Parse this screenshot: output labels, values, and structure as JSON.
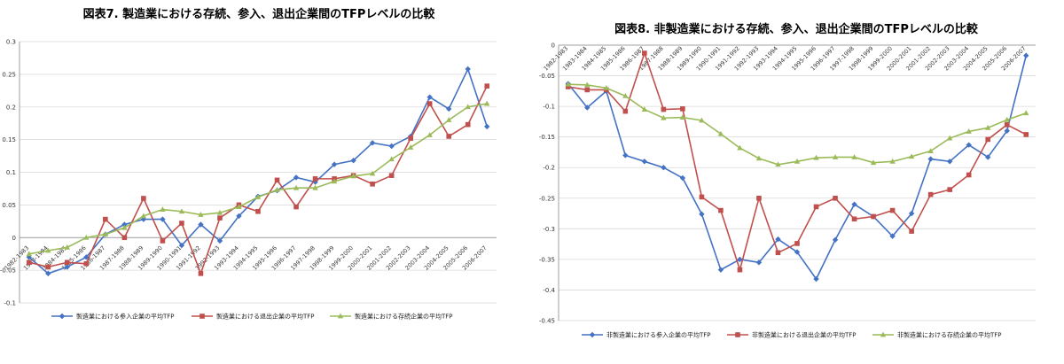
{
  "chart_data": [
    {
      "type": "line",
      "title": "図表7. 製造業における存続、参入、退出企業間のTFPレベルの比較",
      "categories": [
        "1982-1983",
        "1983-1984",
        "1984-1985",
        "1985-1986",
        "1986-1987",
        "1987-1988",
        "1988-1989",
        "1989-1990",
        "1990-1991",
        "1991-1992",
        "1992-1993",
        "1993-1994",
        "1994-1995",
        "1995-1996",
        "1996-1997",
        "1997-1998",
        "1998-1999",
        "1999-2000",
        "2000-2001",
        "2001-2002",
        "2002-2003",
        "2003-2004",
        "2004-2005",
        "2005-2006",
        "2006-2007"
      ],
      "ylim": [
        -0.1,
        0.3
      ],
      "yticks": [
        -0.1,
        -0.05,
        0,
        0.05,
        0.1,
        0.15,
        0.2,
        0.25,
        0.3
      ],
      "ytick_labels": [
        "-0.1",
        "-0.05",
        "0",
        "0.05",
        "0.1",
        "0.15",
        "0.2",
        "0.25",
        "0.3"
      ],
      "grid": true,
      "legend_position": "bottom",
      "series": [
        {
          "name": "製造業における参入企業の平均TFP",
          "color": "#4472c4",
          "marker": "diamond",
          "values": [
            -0.03,
            -0.055,
            -0.045,
            -0.03,
            0.005,
            0.02,
            0.028,
            0.028,
            -0.012,
            0.02,
            -0.005,
            0.033,
            0.063,
            0.072,
            0.092,
            0.085,
            0.112,
            0.118,
            0.145,
            0.14,
            0.155,
            0.215,
            0.197,
            0.258,
            0.17
          ]
        },
        {
          "name": "製造業における退出企業の平均TFP",
          "color": "#c0504d",
          "marker": "square",
          "values": [
            -0.038,
            -0.045,
            -0.038,
            -0.04,
            0.028,
            0.0,
            0.06,
            -0.005,
            0.022,
            -0.055,
            0.03,
            0.05,
            0.04,
            0.088,
            0.047,
            0.09,
            0.09,
            0.095,
            0.082,
            0.095,
            0.152,
            0.205,
            0.155,
            0.173,
            0.232
          ]
        },
        {
          "name": "製造業における存続企業の平均TFP",
          "color": "#9bbb59",
          "marker": "triangle",
          "values": [
            -0.025,
            -0.02,
            -0.015,
            0.0,
            0.005,
            0.015,
            0.033,
            0.043,
            0.04,
            0.035,
            0.038,
            0.047,
            0.062,
            0.073,
            0.076,
            0.076,
            0.086,
            0.094,
            0.098,
            0.12,
            0.138,
            0.157,
            0.18,
            0.2,
            0.205
          ]
        }
      ]
    },
    {
      "type": "line",
      "title": "図表8. 非製造業における存続、参入、退出企業間のTFPレベルの比較",
      "categories": [
        "1982-1983",
        "1983-1984",
        "1984-1985",
        "1985-1986",
        "1986-1987",
        "1987-1988",
        "1988-1989",
        "1989-1990",
        "1990-1991",
        "1991-1992",
        "1992-1993",
        "1993-1994",
        "1994-1995",
        "1995-1996",
        "1996-1997",
        "1997-1998",
        "1998-1999",
        "1999-2000",
        "2000-2001",
        "2001-2002",
        "2002-2003",
        "2003-2004",
        "2004-2005",
        "2005-2006",
        "2006-2007"
      ],
      "ylim": [
        -0.45,
        0
      ],
      "yticks": [
        -0.45,
        -0.4,
        -0.35,
        -0.3,
        -0.25,
        -0.2,
        -0.15,
        -0.1,
        -0.05,
        0
      ],
      "ytick_labels": [
        "-0.45",
        "-0.4",
        "-0.35",
        "-0.3",
        "-0.25",
        "-0.2",
        "-0.15",
        "-0.1",
        "-0.05",
        "0"
      ],
      "grid": true,
      "legend_position": "bottom",
      "series": [
        {
          "name": "非製造業における参入企業の平均TFP",
          "color": "#4472c4",
          "marker": "diamond",
          "values": [
            -0.063,
            -0.102,
            -0.075,
            -0.18,
            -0.19,
            -0.2,
            -0.217,
            -0.276,
            -0.367,
            -0.35,
            -0.355,
            -0.317,
            -0.338,
            -0.382,
            -0.318,
            -0.26,
            -0.28,
            -0.312,
            -0.275,
            -0.186,
            -0.19,
            -0.163,
            -0.183,
            -0.14,
            -0.017
          ]
        },
        {
          "name": "非製造業における退出企業の平均TFP",
          "color": "#c0504d",
          "marker": "square",
          "values": [
            -0.068,
            -0.073,
            -0.073,
            -0.108,
            -0.013,
            -0.105,
            -0.104,
            -0.248,
            -0.27,
            -0.367,
            -0.25,
            -0.339,
            -0.324,
            -0.264,
            -0.25,
            -0.284,
            -0.28,
            -0.27,
            -0.304,
            -0.244,
            -0.236,
            -0.212,
            -0.154,
            -0.13,
            -0.146
          ]
        },
        {
          "name": "非製造業における存続企業の平均TFP",
          "color": "#9bbb59",
          "marker": "triangle",
          "values": [
            -0.064,
            -0.065,
            -0.07,
            -0.083,
            -0.105,
            -0.119,
            -0.118,
            -0.123,
            -0.145,
            -0.168,
            -0.185,
            -0.195,
            -0.19,
            -0.184,
            -0.183,
            -0.183,
            -0.192,
            -0.19,
            -0.182,
            -0.173,
            -0.152,
            -0.141,
            -0.135,
            -0.122,
            -0.111
          ]
        }
      ]
    }
  ]
}
